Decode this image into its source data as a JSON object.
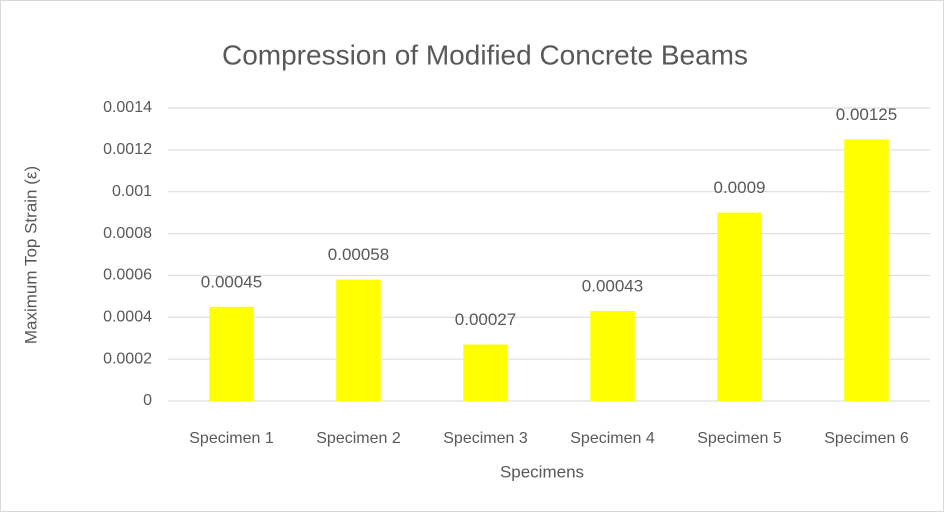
{
  "chart_data": {
    "type": "bar",
    "title": "Compression of Modified Concrete Beams",
    "x_label": "Specimens",
    "y_label": "Maximum Top Strain (ε)",
    "categories": [
      "Specimen 1",
      "Specimen 2",
      "Specimen 3",
      "Specimen 4",
      "Specimen 5",
      "Specimen 6"
    ],
    "values": [
      0.00045,
      0.00058,
      0.00027,
      0.00043,
      0.0009,
      0.00125
    ],
    "color": "#ffff00",
    "ylim": [
      0,
      0.0014
    ],
    "yticks": [
      0,
      0.0002,
      0.0004,
      0.0006,
      0.0008,
      0.001,
      0.0012,
      0.0014
    ],
    "grid": true
  }
}
